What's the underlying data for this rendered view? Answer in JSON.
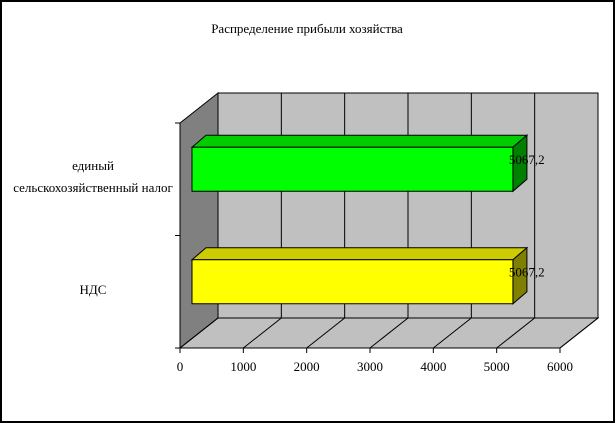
{
  "chart_data": {
    "type": "bar",
    "orientation": "horizontal",
    "title": "Распределение прибыли хозяйства",
    "categories": [
      "единый сельскохозяйственный налог",
      "НДС"
    ],
    "values": [
      5067.2,
      5067.2
    ],
    "value_labels": [
      "5067,2",
      "5067,2"
    ],
    "colors": [
      "#00ff00",
      "#ffff00"
    ],
    "xlim": [
      0,
      6000
    ],
    "xticks": [
      0,
      1000,
      2000,
      3000,
      4000,
      5000,
      6000
    ],
    "grid": true
  }
}
